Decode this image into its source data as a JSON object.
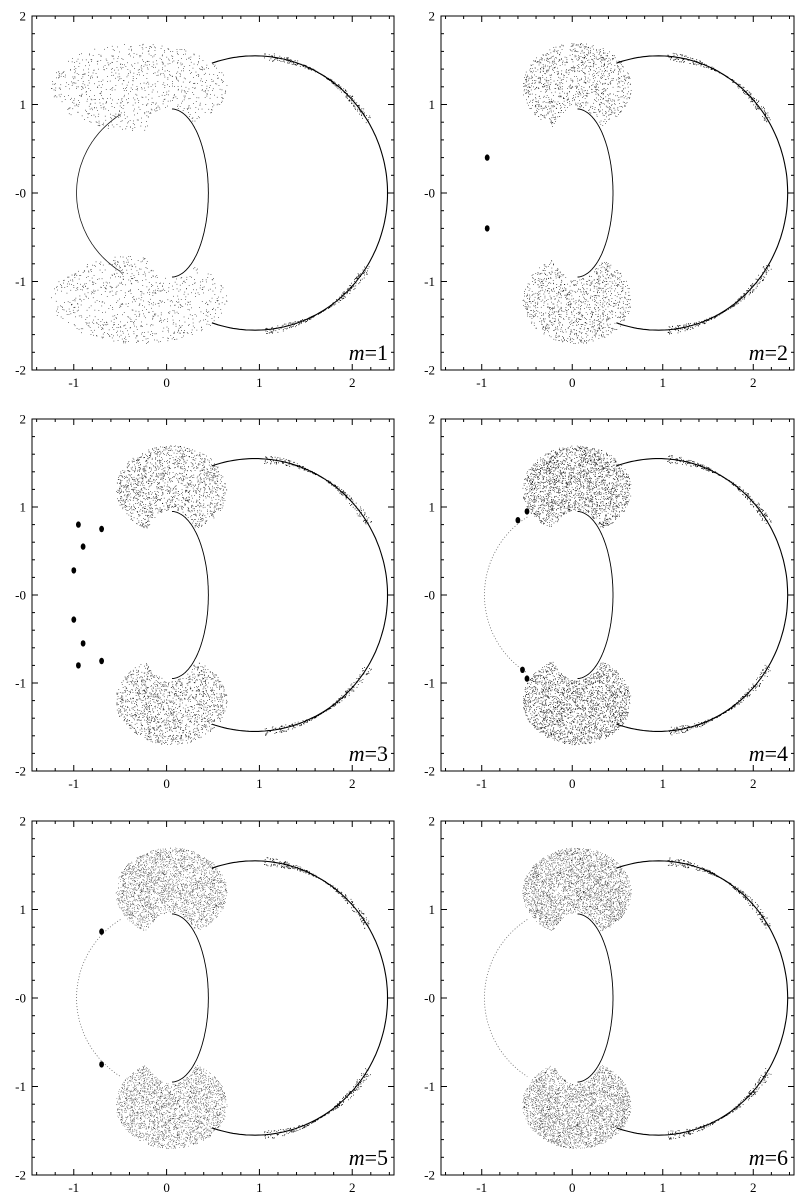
{
  "figure": {
    "axis_color": "#000000",
    "curve_color": "#000000"
  },
  "chart_data": [
    {
      "type": "scatter",
      "label_var": "m",
      "label_eq": "=",
      "label_val": "1",
      "m": 1,
      "xlim": [
        -1.45,
        2.45
      ],
      "ylim": [
        -2,
        2
      ],
      "xticks": [
        -1,
        0,
        1,
        2
      ],
      "xtick_labels": [
        "-1",
        "0",
        "1",
        "2"
      ],
      "yticks": [
        -2,
        -1,
        0,
        1,
        2
      ],
      "ytick_labels": [
        "-2",
        "-1",
        "-0",
        "1",
        "2"
      ],
      "grid": false
    },
    {
      "type": "scatter",
      "label_var": "m",
      "label_eq": "=",
      "label_val": "2",
      "m": 2,
      "xlim": [
        -1.45,
        2.45
      ],
      "ylim": [
        -2,
        2
      ],
      "xticks": [
        -1,
        0,
        1,
        2
      ],
      "xtick_labels": [
        "-1",
        "0",
        "1",
        "2"
      ],
      "yticks": [
        -2,
        -1,
        0,
        1,
        2
      ],
      "ytick_labels": [
        "-2",
        "-1",
        "-0",
        "1",
        "2"
      ],
      "grid": false
    },
    {
      "type": "scatter",
      "label_var": "m",
      "label_eq": "=",
      "label_val": "3",
      "m": 3,
      "xlim": [
        -1.45,
        2.45
      ],
      "ylim": [
        -2,
        2
      ],
      "xticks": [
        -1,
        0,
        1,
        2
      ],
      "xtick_labels": [
        "-1",
        "0",
        "1",
        "2"
      ],
      "yticks": [
        -2,
        -1,
        0,
        1,
        2
      ],
      "ytick_labels": [
        "-2",
        "-1",
        "-0",
        "1",
        "2"
      ],
      "grid": false
    },
    {
      "type": "scatter",
      "label_var": "m",
      "label_eq": "=",
      "label_val": "4",
      "m": 4,
      "xlim": [
        -1.45,
        2.45
      ],
      "ylim": [
        -2,
        2
      ],
      "xticks": [
        -1,
        0,
        1,
        2
      ],
      "xtick_labels": [
        "-1",
        "0",
        "1",
        "2"
      ],
      "yticks": [
        -2,
        -1,
        0,
        1,
        2
      ],
      "ytick_labels": [
        "-2",
        "-1",
        "-0",
        "1",
        "2"
      ],
      "grid": false
    },
    {
      "type": "scatter",
      "label_var": "m",
      "label_eq": "=",
      "label_val": "5",
      "m": 5,
      "xlim": [
        -1.45,
        2.45
      ],
      "ylim": [
        -2,
        2
      ],
      "xticks": [
        -1,
        0,
        1,
        2
      ],
      "xtick_labels": [
        "-1",
        "0",
        "1",
        "2"
      ],
      "yticks": [
        -2,
        -1,
        0,
        1,
        2
      ],
      "ytick_labels": [
        "-2",
        "-1",
        "-0",
        "1",
        "2"
      ],
      "grid": false
    },
    {
      "type": "scatter",
      "label_var": "m",
      "label_eq": "=",
      "label_val": "6",
      "m": 6,
      "xlim": [
        -1.45,
        2.45
      ],
      "ylim": [
        -2,
        2
      ],
      "xticks": [
        -1,
        0,
        1,
        2
      ],
      "xtick_labels": [
        "-1",
        "0",
        "1",
        "2"
      ],
      "yticks": [
        -2,
        -1,
        0,
        1,
        2
      ],
      "ytick_labels": [
        "-2",
        "-1",
        "-0",
        "1",
        "2"
      ],
      "grid": false
    }
  ]
}
